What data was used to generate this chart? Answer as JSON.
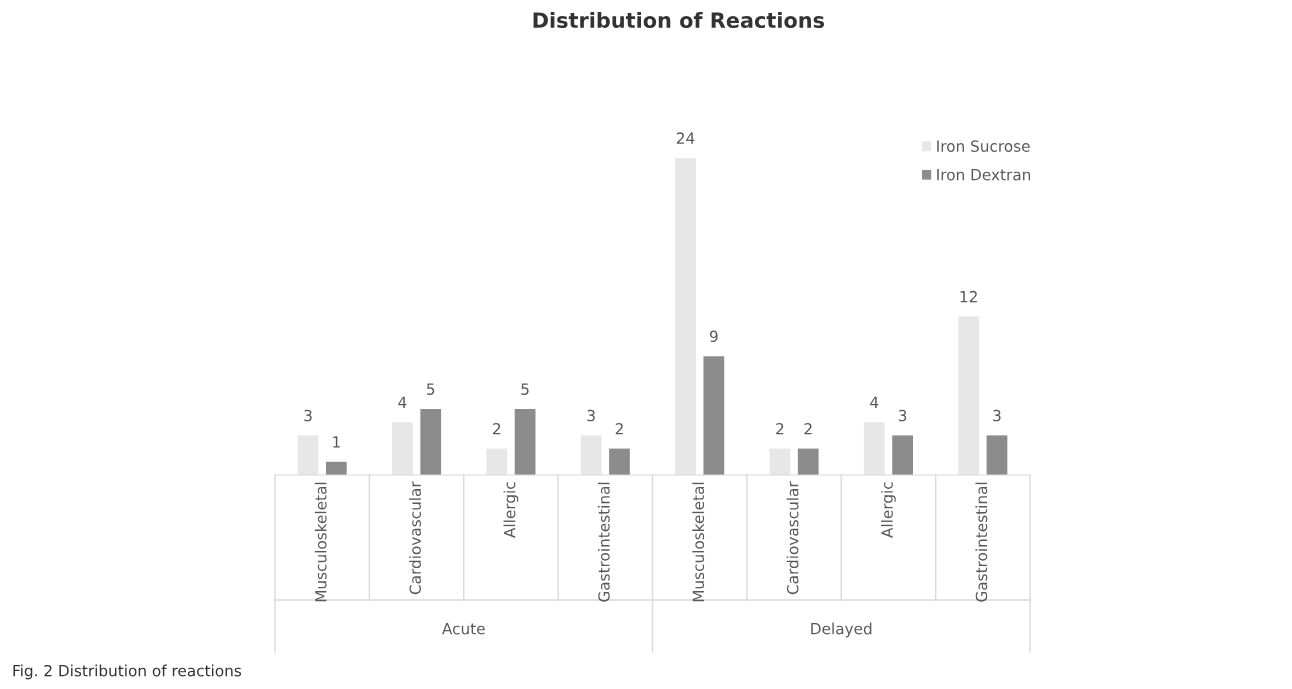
{
  "chart_data": {
    "type": "bar",
    "title": "Distribution of Reactions",
    "categories": [
      "Musculoskeletal",
      "Cardiovascular",
      "Allergic",
      "Gastrointestinal",
      "Musculoskeletal",
      "Cardiovascular",
      "Allergic",
      "Gastrointestinal"
    ],
    "series": [
      {
        "name": "Iron Sucrose",
        "color": "#e7e7e7",
        "values": [
          3,
          4,
          2,
          3,
          24,
          2,
          4,
          12
        ]
      },
      {
        "name": "Iron Dextran",
        "color": "#8c8c8c",
        "values": [
          1,
          5,
          5,
          2,
          9,
          2,
          3,
          3
        ]
      }
    ],
    "annotations": [
      "Acute",
      "Delayed",
      "Fig. 2 Distribution of reactions"
    ],
    "data_labels": true,
    "legend": "top right"
  }
}
